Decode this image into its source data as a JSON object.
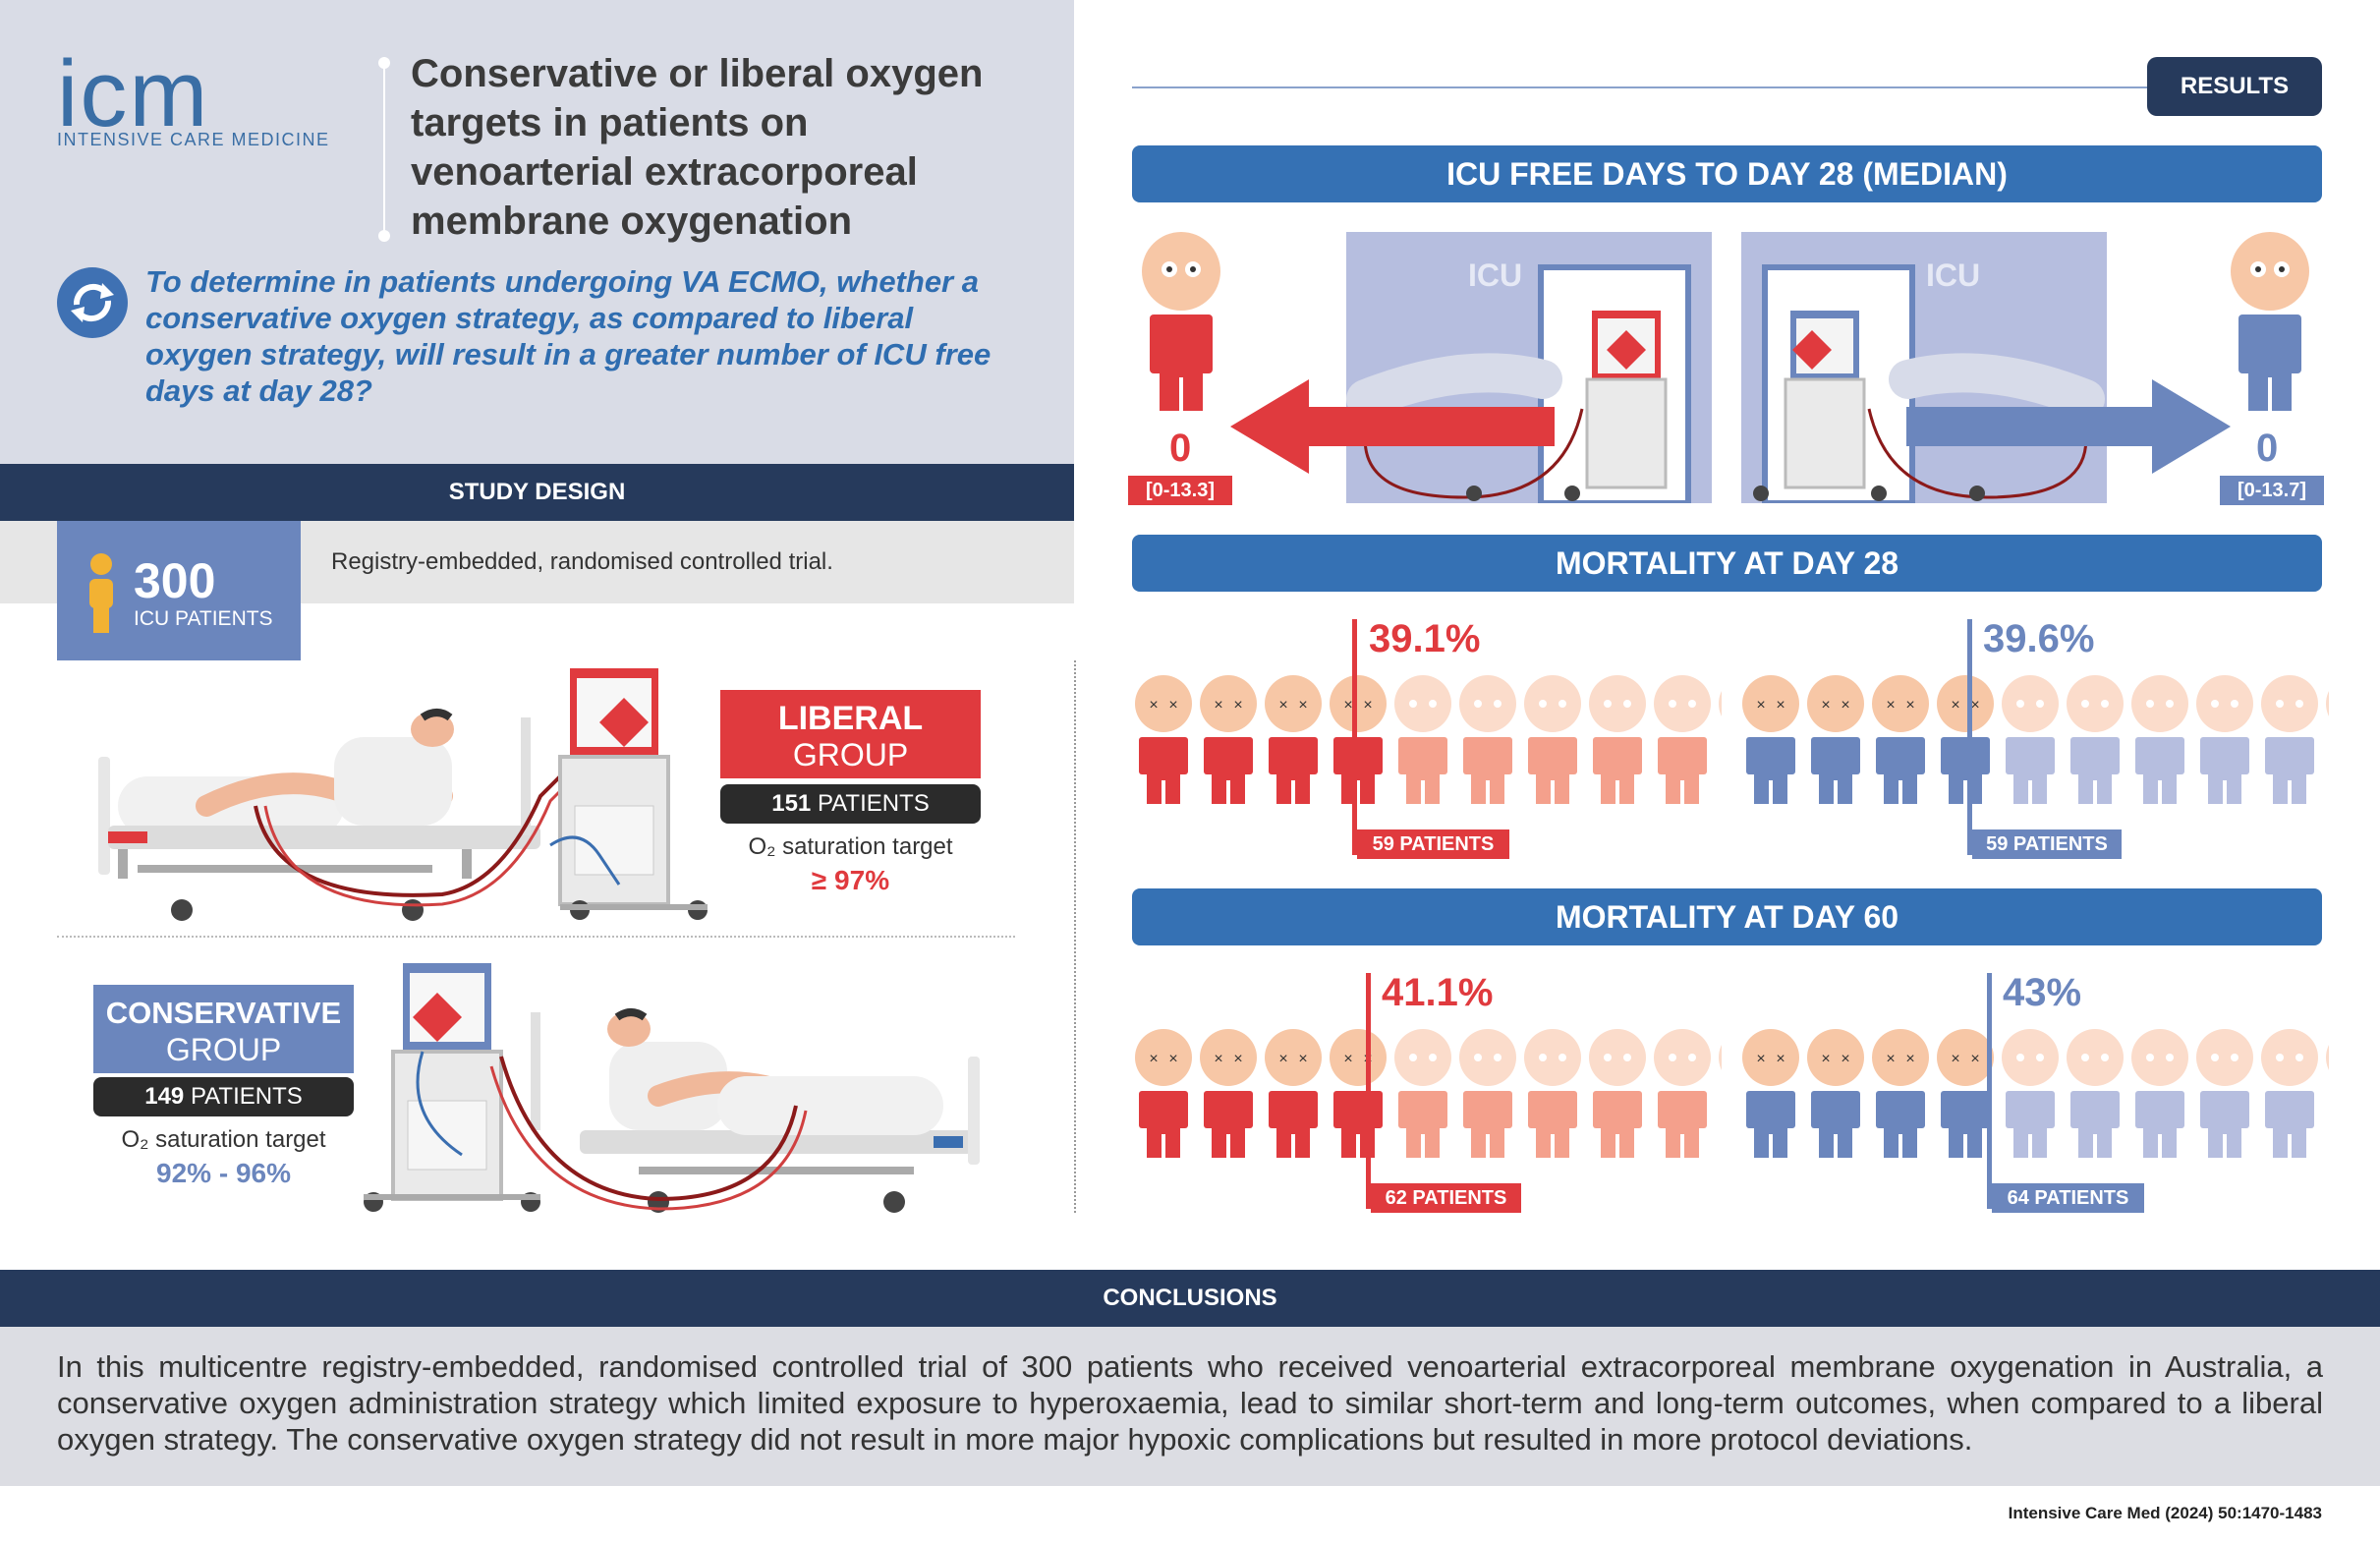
{
  "logo": {
    "mark": "icm",
    "subtitle": "INTENSIVE CARE MEDICINE"
  },
  "title": "Conservative or liberal oxygen targets in patients on venoarterial extracorporeal membrane oxygenation",
  "objective": "To determine in patients undergoing VA ECMO, whether a conservative oxygen strategy, as compared to liberal oxygen strategy, will result in a greater number of ICU free days at day 28?",
  "study_design": {
    "heading": "STUDY DESIGN",
    "total": "300",
    "total_label": "ICU PATIENTS",
    "design": "Registry-embedded, randomised controlled trial."
  },
  "liberal": {
    "name_line1": "LIBERAL",
    "name_line2": "GROUP",
    "patients_num": "151",
    "patients_word": "PATIENTS",
    "target_label": "O₂ saturation target",
    "target_value": "≥ 97%"
  },
  "conservative": {
    "name_line1": "CONSERVATIVE",
    "name_line2": "GROUP",
    "patients_num": "149",
    "patients_word": "PATIENTS",
    "target_label": "O₂ saturation target",
    "target_value": "92% - 96%"
  },
  "results": {
    "label": "RESULTS",
    "icu_free_title": "ICU FREE DAYS TO DAY 28 (MEDIAN)",
    "icu_word": "ICU",
    "liberal_value": "0",
    "liberal_range": "[0-13.3]",
    "conservative_value": "0",
    "conservative_range": "[0-13.7]",
    "mortality28_title": "MORTALITY AT DAY 28",
    "mortality28_liberal_pct": "39.1%",
    "mortality28_liberal_patients": "59 PATIENTS",
    "mortality28_conservative_pct": "39.6%",
    "mortality28_conservative_patients": "59 PATIENTS",
    "mortality60_title": "MORTALITY AT DAY 60",
    "mortality60_liberal_pct": "41.1%",
    "mortality60_liberal_patients": "62 PATIENTS",
    "mortality60_conservative_pct": "43%",
    "mortality60_conservative_patients": "64 PATIENTS"
  },
  "conclusions": {
    "heading": "CONCLUSIONS",
    "text": "In this multicentre registry-embedded, randomised controlled trial of 300 patients who received venoarterial extracorporeal membrane oxygenation in Australia, a conservative oxygen administration strategy which limited exposure to hyperoxaemia, lead to similar short-term and long-term outcomes, when compared to a liberal oxygen strategy. The conservative oxygen strategy did not result in more major hypoxic complications but resulted in more protocol deviations."
  },
  "citation": "Intensive Care Med (2024) 50:1470-1483",
  "colors": {
    "red": "#e03a3e",
    "blue": "#6b86bd",
    "navy": "#263a5c",
    "bar_blue": "#3571b4"
  },
  "icons": [
    "person-icon",
    "refresh-question-icon",
    "icu-bed-illustration",
    "ecmo-machine-illustration",
    "arrow-left-icon",
    "arrow-right-icon"
  ]
}
